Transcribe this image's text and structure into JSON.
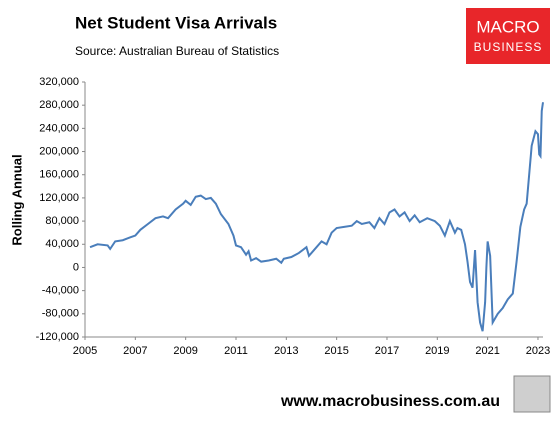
{
  "chart_data": {
    "type": "line",
    "title": "Net Student Visa Arrivals",
    "subtitle": "Source: Australian Bureau of Statistics",
    "ylabel": "Rolling Annual",
    "logo": [
      "MACRO",
      "BUSINESS"
    ],
    "footer": "www.macrobusiness.com.au",
    "x": [
      2005.2,
      2005.5,
      2005.9,
      2006.0,
      2006.2,
      2006.5,
      2006.8,
      2007.0,
      2007.2,
      2007.5,
      2007.8,
      2008.1,
      2008.3,
      2008.6,
      2008.9,
      2009.0,
      2009.2,
      2009.4,
      2009.6,
      2009.8,
      2010.0,
      2010.2,
      2010.4,
      2010.7,
      2010.9,
      2011.0,
      2011.2,
      2011.4,
      2011.5,
      2011.6,
      2011.8,
      2012.0,
      2012.3,
      2012.6,
      2012.8,
      2012.9,
      2013.2,
      2013.5,
      2013.8,
      2013.9,
      2014.1,
      2014.4,
      2014.6,
      2014.8,
      2015.0,
      2015.3,
      2015.6,
      2015.8,
      2016.0,
      2016.3,
      2016.5,
      2016.7,
      2016.9,
      2017.1,
      2017.3,
      2017.5,
      2017.7,
      2017.9,
      2018.1,
      2018.3,
      2018.6,
      2018.9,
      2019.1,
      2019.3,
      2019.5,
      2019.7,
      2019.8,
      2019.95,
      2020.1,
      2020.2,
      2020.3,
      2020.4,
      2020.5,
      2020.6,
      2020.7,
      2020.8,
      2020.9,
      2020.95,
      2021.0,
      2021.1,
      2021.2,
      2021.4,
      2021.6,
      2021.8,
      2022.0,
      2022.15,
      2022.3,
      2022.45,
      2022.55,
      2022.65,
      2022.75,
      2022.9,
      2023.0,
      2023.05,
      2023.1,
      2023.15,
      2023.2
    ],
    "series": [
      {
        "name": "Rolling Annual",
        "color": "#4a7ebb",
        "values": [
          35000,
          40000,
          38000,
          32000,
          45000,
          47000,
          52000,
          55000,
          65000,
          75000,
          85000,
          88000,
          85000,
          100000,
          110000,
          115000,
          108000,
          122000,
          124000,
          118000,
          120000,
          110000,
          92000,
          75000,
          55000,
          38000,
          35000,
          22000,
          28000,
          12000,
          16000,
          10000,
          12000,
          15000,
          8000,
          15000,
          18000,
          25000,
          35000,
          20000,
          30000,
          45000,
          40000,
          60000,
          68000,
          70000,
          72000,
          80000,
          75000,
          78000,
          68000,
          85000,
          75000,
          95000,
          100000,
          88000,
          95000,
          80000,
          90000,
          78000,
          85000,
          80000,
          72000,
          55000,
          80000,
          60000,
          68000,
          65000,
          40000,
          10000,
          -25000,
          -35000,
          30000,
          -60000,
          -95000,
          -110000,
          -60000,
          0,
          45000,
          20000,
          -95000,
          -80000,
          -70000,
          -55000,
          -45000,
          10000,
          70000,
          100000,
          110000,
          160000,
          210000,
          235000,
          230000,
          195000,
          192000,
          270000,
          285000
        ]
      }
    ],
    "xlim": [
      2005,
      2023.2
    ],
    "xticks": [
      2005,
      2007,
      2009,
      2011,
      2013,
      2015,
      2017,
      2019,
      2021,
      2023
    ],
    "ylim": [
      -120000,
      320000
    ],
    "yticks": [
      {
        "value": -120000,
        "label": "-120,000"
      },
      {
        "value": -80000,
        "label": "-80,000"
      },
      {
        "value": -40000,
        "label": "-40,000"
      },
      0,
      {
        "value": 40000,
        "label": "40,000"
      },
      {
        "value": 80000,
        "label": "80,000"
      },
      {
        "value": 120000,
        "label": "120,000"
      },
      {
        "value": 160000,
        "label": "160,000"
      },
      {
        "value": 200000,
        "label": "200,000"
      },
      {
        "value": 240000,
        "label": "240,000"
      },
      {
        "value": 280000,
        "label": "280,000"
      },
      {
        "value": 320000,
        "label": "320,000"
      }
    ],
    "grid": false
  }
}
